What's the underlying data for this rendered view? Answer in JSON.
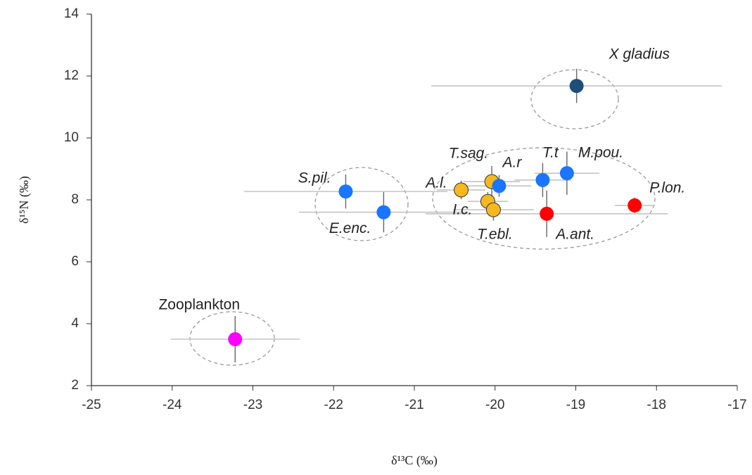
{
  "chart_data": {
    "type": "scatter",
    "xlabel": "δ¹³C (‰)",
    "ylabel": "δ¹⁵N (‰)",
    "xlim": [
      -25,
      -17
    ],
    "ylim": [
      2,
      14
    ],
    "xticks": [
      -25,
      -24,
      -23,
      -22,
      -21,
      -20,
      -19,
      -18,
      -17
    ],
    "yticks": [
      2,
      4,
      6,
      8,
      10,
      12,
      14
    ],
    "series": [
      {
        "name": "Zooplankton",
        "color": "#ff00ff",
        "x": [
          -23.22
        ],
        "values": [
          3.5
        ],
        "xerr": [
          0.8
        ],
        "yerr": [
          0.75
        ]
      },
      {
        "name": "X gladius",
        "color": "#1f4e79",
        "x": [
          -18.99
        ],
        "values": [
          11.68
        ],
        "xerr": [
          1.8
        ],
        "yerr": [
          0.55
        ]
      },
      {
        "name": "S.pil.",
        "color": "#1a75ff",
        "x": [
          -21.85
        ],
        "values": [
          8.27
        ],
        "xerr": [
          1.26
        ],
        "yerr": [
          0.55
        ]
      },
      {
        "name": "E.enc.",
        "color": "#1a75ff",
        "x": [
          -21.38
        ],
        "values": [
          7.6
        ],
        "xerr": [
          1.05
        ],
        "yerr": [
          0.65
        ]
      },
      {
        "name": "A.l.",
        "color": "#f5b820",
        "x": [
          -20.42
        ],
        "values": [
          8.32
        ],
        "xerr": [
          0.3
        ],
        "yerr": [
          0.3
        ]
      },
      {
        "name": "T.sag.",
        "color": "#f5b820",
        "x": [
          -20.04
        ],
        "values": [
          8.59
        ],
        "xerr": [
          0.35
        ],
        "yerr": [
          0.5
        ]
      },
      {
        "name": "A.r",
        "color": "#1a75ff",
        "x": [
          -19.95
        ],
        "values": [
          8.45
        ],
        "xerr": [
          0.4
        ],
        "yerr": [
          0.35
        ]
      },
      {
        "name": "I.c.",
        "color": "#f5b820",
        "x": [
          -20.09
        ],
        "values": [
          7.95
        ],
        "xerr": [
          0.25
        ],
        "yerr": [
          0.3
        ]
      },
      {
        "name": "T.ebl.",
        "color": "#f5b820",
        "x": [
          -20.02
        ],
        "values": [
          7.68
        ],
        "xerr": [
          0.5
        ],
        "yerr": [
          0.35
        ]
      },
      {
        "name": "T.t",
        "color": "#1a75ff",
        "x": [
          -19.41
        ],
        "values": [
          8.64
        ],
        "xerr": [
          0.35
        ],
        "yerr": [
          0.55
        ]
      },
      {
        "name": "M.pou.",
        "color": "#1a75ff",
        "x": [
          -19.11
        ],
        "values": [
          8.86
        ],
        "xerr": [
          0.4
        ],
        "yerr": [
          0.7
        ]
      },
      {
        "name": "A.ant.",
        "color": "#ff0000",
        "x": [
          -19.36
        ],
        "values": [
          7.55
        ],
        "xerr": [
          1.5
        ],
        "yerr": [
          0.75
        ]
      },
      {
        "name": "P.lon.",
        "color": "#ff0000",
        "x": [
          -18.27
        ],
        "values": [
          7.82
        ],
        "xerr": [
          0.25
        ],
        "yerr": [
          0.25
        ]
      }
    ]
  }
}
